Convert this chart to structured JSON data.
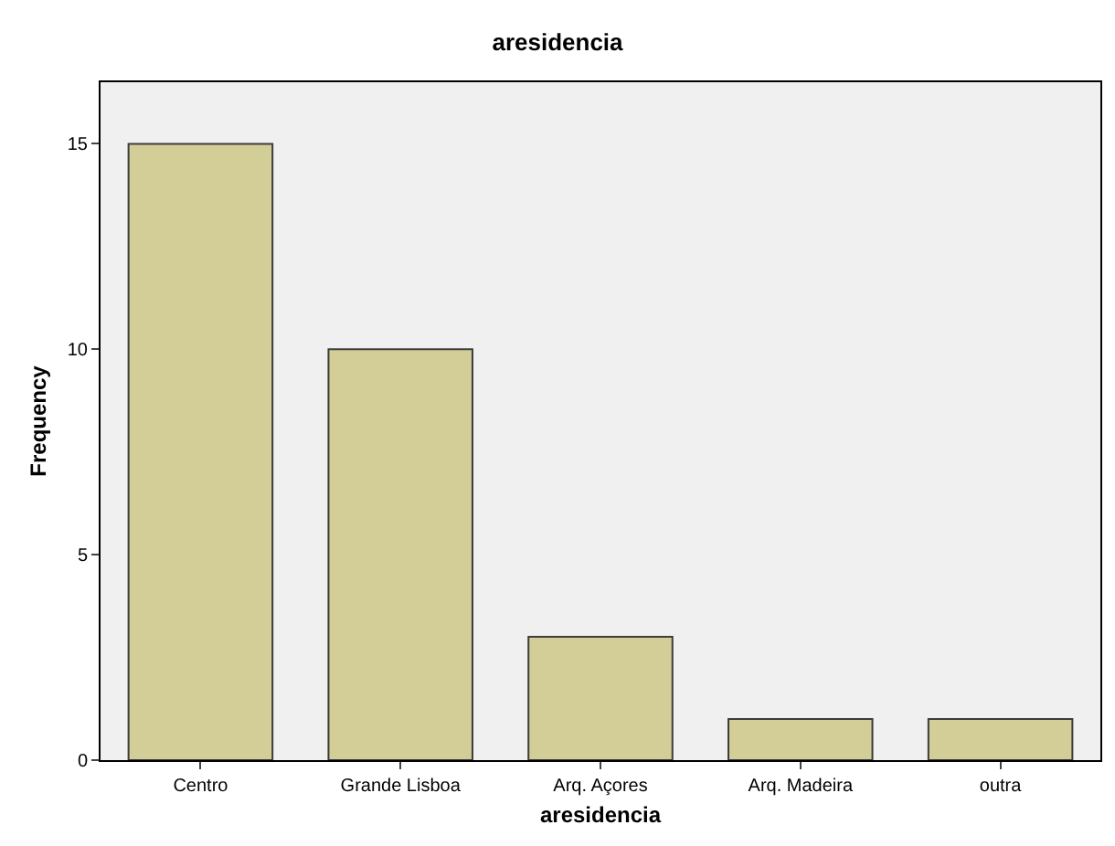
{
  "chart_data": {
    "type": "bar",
    "title": "aresidencia",
    "xlabel": "aresidencia",
    "ylabel": "Frequency",
    "categories": [
      "Centro",
      "Grande Lisboa",
      "Arq. Açores",
      "Arq. Madeira",
      "outra"
    ],
    "values": [
      15,
      10,
      3,
      1,
      1
    ],
    "color": "#d3ce97",
    "ylim": [
      0,
      16.5
    ],
    "yticks": [
      0,
      5,
      10,
      15
    ],
    "grid": false
  }
}
